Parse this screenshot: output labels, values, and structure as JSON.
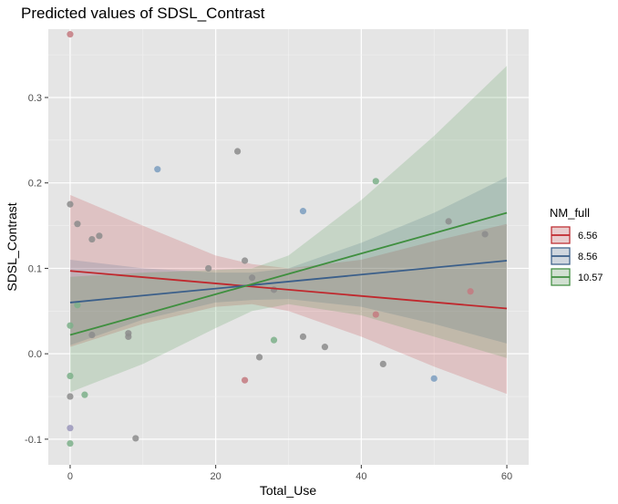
{
  "chart_data": {
    "type": "line",
    "title": "Predicted values of SDSL_Contrast",
    "xlabel": "Total_Use",
    "ylabel": "SDSL_Contrast",
    "xlim": [
      -3,
      63
    ],
    "ylim": [
      -0.13,
      0.38
    ],
    "xticks": [
      0,
      20,
      40,
      60
    ],
    "yticks": [
      -0.1,
      0.0,
      0.1,
      0.2,
      0.3
    ],
    "ytick_labels": [
      "-0.1",
      "0.0",
      "0.1",
      "0.2",
      "0.3"
    ],
    "grid": true,
    "legend": {
      "title": "NM_full",
      "placement": "right"
    },
    "series": [
      {
        "name": "6.56",
        "color": "#c0282d",
        "line": [
          [
            0,
            0.097
          ],
          [
            60,
            0.053
          ]
        ],
        "ci": {
          "x": [
            0,
            10,
            20,
            25,
            30,
            40,
            50,
            60
          ],
          "lower": [
            0.008,
            0.035,
            0.055,
            0.058,
            0.05,
            0.02,
            -0.015,
            -0.047
          ],
          "upper": [
            0.186,
            0.15,
            0.115,
            0.105,
            0.1,
            0.11,
            0.132,
            0.152
          ]
        }
      },
      {
        "name": "8.56",
        "color": "#3b5f8a",
        "line": [
          [
            0,
            0.06
          ],
          [
            60,
            0.109
          ]
        ],
        "ci": {
          "x": [
            0,
            10,
            20,
            25,
            30,
            40,
            50,
            60
          ],
          "lower": [
            0.01,
            0.04,
            0.06,
            0.063,
            0.064,
            0.055,
            0.035,
            0.012
          ],
          "upper": [
            0.11,
            0.1,
            0.095,
            0.095,
            0.1,
            0.13,
            0.165,
            0.207
          ]
        }
      },
      {
        "name": "10.57",
        "color": "#3f8f3f",
        "line": [
          [
            0,
            0.022
          ],
          [
            60,
            0.165
          ]
        ],
        "ci": {
          "x": [
            0,
            10,
            20,
            25,
            30,
            40,
            50,
            60
          ],
          "lower": [
            -0.045,
            -0.012,
            0.03,
            0.05,
            0.058,
            0.045,
            0.02,
            -0.005
          ],
          "upper": [
            0.09,
            0.095,
            0.098,
            0.1,
            0.115,
            0.18,
            0.255,
            0.337
          ]
        }
      }
    ],
    "points": [
      {
        "x": 0,
        "y": 0.374,
        "c": "red"
      },
      {
        "x": 0,
        "y": 0.175,
        "c": "grey"
      },
      {
        "x": 1,
        "y": 0.152,
        "c": "grey"
      },
      {
        "x": 3,
        "y": 0.134,
        "c": "grey"
      },
      {
        "x": 4,
        "y": 0.138,
        "c": "grey"
      },
      {
        "x": 1,
        "y": 0.057,
        "c": "green"
      },
      {
        "x": 0,
        "y": 0.033,
        "c": "green"
      },
      {
        "x": 3,
        "y": 0.022,
        "c": "grey"
      },
      {
        "x": 8,
        "y": 0.024,
        "c": "grey"
      },
      {
        "x": 8,
        "y": 0.02,
        "c": "grey"
      },
      {
        "x": 0,
        "y": -0.026,
        "c": "green"
      },
      {
        "x": 0,
        "y": -0.05,
        "c": "grey"
      },
      {
        "x": 2,
        "y": -0.048,
        "c": "green"
      },
      {
        "x": 0,
        "y": -0.087,
        "c": "purple"
      },
      {
        "x": 0,
        "y": -0.105,
        "c": "green"
      },
      {
        "x": 9,
        "y": -0.099,
        "c": "grey"
      },
      {
        "x": 12,
        "y": 0.216,
        "c": "blue"
      },
      {
        "x": 19,
        "y": 0.1,
        "c": "grey"
      },
      {
        "x": 23,
        "y": 0.237,
        "c": "grey"
      },
      {
        "x": 24,
        "y": 0.109,
        "c": "grey"
      },
      {
        "x": 25,
        "y": 0.089,
        "c": "grey"
      },
      {
        "x": 28,
        "y": 0.075,
        "c": "grey"
      },
      {
        "x": 26,
        "y": -0.004,
        "c": "grey"
      },
      {
        "x": 24,
        "y": -0.031,
        "c": "red"
      },
      {
        "x": 28,
        "y": 0.016,
        "c": "green"
      },
      {
        "x": 32,
        "y": 0.167,
        "c": "blue"
      },
      {
        "x": 32,
        "y": 0.02,
        "c": "grey"
      },
      {
        "x": 35,
        "y": 0.008,
        "c": "grey"
      },
      {
        "x": 42,
        "y": 0.202,
        "c": "green"
      },
      {
        "x": 42,
        "y": 0.046,
        "c": "red"
      },
      {
        "x": 43,
        "y": -0.012,
        "c": "grey"
      },
      {
        "x": 50,
        "y": -0.029,
        "c": "blue"
      },
      {
        "x": 52,
        "y": 0.155,
        "c": "grey"
      },
      {
        "x": 55,
        "y": 0.073,
        "c": "red"
      },
      {
        "x": 57,
        "y": 0.14,
        "c": "grey"
      }
    ],
    "point_colors": {
      "red": "#c47a80",
      "grey": "#8c8c8c",
      "green": "#7cb08a",
      "blue": "#7b9ec0",
      "purple": "#9a96bb"
    }
  }
}
